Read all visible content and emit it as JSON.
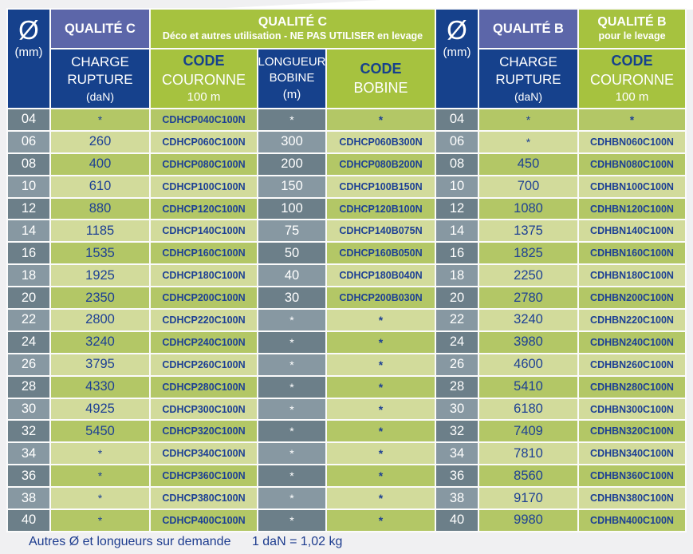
{
  "colors": {
    "navy_bg": "#16418c",
    "purple_bg": "#5c66a9",
    "green_header": "#a6c23f",
    "green_row_dark": "#b3c766",
    "green_row_light": "#d2db9b",
    "slate_dark": "#6c7f89",
    "slate_light": "#8798a2",
    "text_navy": "#1d4094",
    "page_bg": "#f0f0f2"
  },
  "table": {
    "headers": {
      "diameter_symbol": "Ø",
      "diameter_unit": "(mm)",
      "quality_c_label": "QUALITÉ C",
      "quality_c_deco_title": "QUALITÉ C",
      "quality_c_deco_subtitle": "Déco et autres utilisation - NE PAS UTILISER en levage",
      "quality_b_label": "QUALITÉ B",
      "quality_b_levage_title": "QUALITÉ B",
      "quality_b_levage_subtitle": "pour le levage",
      "charge": [
        "CHARGE",
        "RUPTURE",
        "(daN)"
      ],
      "code_couronne": [
        "CODE",
        "COURONNE",
        "100 m"
      ],
      "longueur_bobine": [
        "LONGUEUR",
        "BOBINE",
        "(m)"
      ],
      "code_bobine": [
        "CODE",
        "BOBINE"
      ]
    },
    "rows": [
      {
        "diameter": "04",
        "charge_c": "*",
        "code_couronne_c": "CDHCP040C100N",
        "longueur_bobine": "*",
        "code_bobine": "*",
        "charge_b": "*",
        "code_couronne_b": "*"
      },
      {
        "diameter": "06",
        "charge_c": "260",
        "code_couronne_c": "CDHCP060C100N",
        "longueur_bobine": "300",
        "code_bobine": "CDHCP060B300N",
        "charge_b": "*",
        "code_couronne_b": "CDHBN060C100N"
      },
      {
        "diameter": "08",
        "charge_c": "400",
        "code_couronne_c": "CDHCP080C100N",
        "longueur_bobine": "200",
        "code_bobine": "CDHCP080B200N",
        "charge_b": "450",
        "code_couronne_b": "CDHBN080C100N"
      },
      {
        "diameter": "10",
        "charge_c": "610",
        "code_couronne_c": "CDHCP100C100N",
        "longueur_bobine": "150",
        "code_bobine": "CDHCP100B150N",
        "charge_b": "700",
        "code_couronne_b": "CDHBN100C100N"
      },
      {
        "diameter": "12",
        "charge_c": "880",
        "code_couronne_c": "CDHCP120C100N",
        "longueur_bobine": "100",
        "code_bobine": "CDHCP120B100N",
        "charge_b": "1080",
        "code_couronne_b": "CDHBN120C100N"
      },
      {
        "diameter": "14",
        "charge_c": "1185",
        "code_couronne_c": "CDHCP140C100N",
        "longueur_bobine": "75",
        "code_bobine": "CDHCP140B075N",
        "charge_b": "1375",
        "code_couronne_b": "CDHBN140C100N"
      },
      {
        "diameter": "16",
        "charge_c": "1535",
        "code_couronne_c": "CDHCP160C100N",
        "longueur_bobine": "50",
        "code_bobine": "CDHCP160B050N",
        "charge_b": "1825",
        "code_couronne_b": "CDHBN160C100N"
      },
      {
        "diameter": "18",
        "charge_c": "1925",
        "code_couronne_c": "CDHCP180C100N",
        "longueur_bobine": "40",
        "code_bobine": "CDHCP180B040N",
        "charge_b": "2250",
        "code_couronne_b": "CDHBN180C100N"
      },
      {
        "diameter": "20",
        "charge_c": "2350",
        "code_couronne_c": "CDHCP200C100N",
        "longueur_bobine": "30",
        "code_bobine": "CDHCP200B030N",
        "charge_b": "2780",
        "code_couronne_b": "CDHBN200C100N"
      },
      {
        "diameter": "22",
        "charge_c": "2800",
        "code_couronne_c": "CDHCP220C100N",
        "longueur_bobine": "*",
        "code_bobine": "*",
        "charge_b": "3240",
        "code_couronne_b": "CDHBN220C100N"
      },
      {
        "diameter": "24",
        "charge_c": "3240",
        "code_couronne_c": "CDHCP240C100N",
        "longueur_bobine": "*",
        "code_bobine": "*",
        "charge_b": "3980",
        "code_couronne_b": "CDHBN240C100N"
      },
      {
        "diameter": "26",
        "charge_c": "3795",
        "code_couronne_c": "CDHCP260C100N",
        "longueur_bobine": "*",
        "code_bobine": "*",
        "charge_b": "4600",
        "code_couronne_b": "CDHBN260C100N"
      },
      {
        "diameter": "28",
        "charge_c": "4330",
        "code_couronne_c": "CDHCP280C100N",
        "longueur_bobine": "*",
        "code_bobine": "*",
        "charge_b": "5410",
        "code_couronne_b": "CDHBN280C100N"
      },
      {
        "diameter": "30",
        "charge_c": "4925",
        "code_couronne_c": "CDHCP300C100N",
        "longueur_bobine": "*",
        "code_bobine": "*",
        "charge_b": "6180",
        "code_couronne_b": "CDHBN300C100N"
      },
      {
        "diameter": "32",
        "charge_c": "5450",
        "code_couronne_c": "CDHCP320C100N",
        "longueur_bobine": "*",
        "code_bobine": "*",
        "charge_b": "7409",
        "code_couronne_b": "CDHBN320C100N"
      },
      {
        "diameter": "34",
        "charge_c": "*",
        "code_couronne_c": "CDHCP340C100N",
        "longueur_bobine": "*",
        "code_bobine": "*",
        "charge_b": "7810",
        "code_couronne_b": "CDHBN340C100N"
      },
      {
        "diameter": "36",
        "charge_c": "*",
        "code_couronne_c": "CDHCP360C100N",
        "longueur_bobine": "*",
        "code_bobine": "*",
        "charge_b": "8560",
        "code_couronne_b": "CDHBN360C100N"
      },
      {
        "diameter": "38",
        "charge_c": "*",
        "code_couronne_c": "CDHCP380C100N",
        "longueur_bobine": "*",
        "code_bobine": "*",
        "charge_b": "9170",
        "code_couronne_b": "CDHBN380C100N"
      },
      {
        "diameter": "40",
        "charge_c": "*",
        "code_couronne_c": "CDHCP400C100N",
        "longueur_bobine": "*",
        "code_bobine": "*",
        "charge_b": "9980",
        "code_couronne_b": "CDHBN400C100N"
      }
    ]
  },
  "footer": {
    "note": "Autres Ø et longueurs sur demande",
    "conversion": "1 daN = 1,02 kg"
  }
}
